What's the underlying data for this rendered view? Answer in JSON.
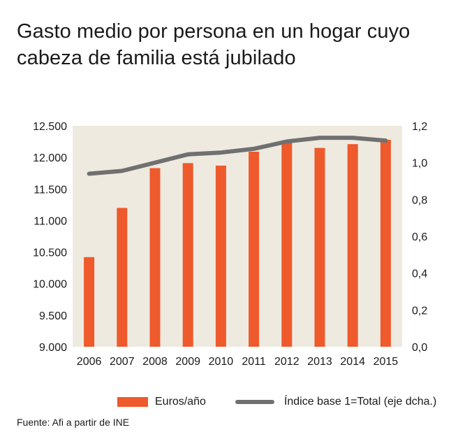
{
  "title_lines": [
    "Gasto medio por persona en un hogar cuyo",
    "cabeza de familia está jubilado"
  ],
  "source": "Fuente: Afi a partir de INE",
  "colors": {
    "bar": "#ee5a2c",
    "line": "#707070",
    "plot_bg": "#eeeae0",
    "text": "#1a1a1a"
  },
  "chart_data": {
    "type": "bar",
    "title": "Gasto medio por persona en un hogar cuyo cabeza de familia está jubilado",
    "categories": [
      "2006",
      "2007",
      "2008",
      "2009",
      "2010",
      "2011",
      "2012",
      "2013",
      "2014",
      "2015"
    ],
    "series": [
      {
        "name": "Euros/año",
        "type": "bar",
        "axis": "left",
        "values": [
          10420,
          11200,
          11830,
          11910,
          11870,
          12090,
          12260,
          12150,
          12210,
          12280
        ]
      },
      {
        "name": "Índice base 1=Total (eje dcha.)",
        "type": "line",
        "axis": "right",
        "values": [
          0.94,
          0.955,
          1.0,
          1.045,
          1.055,
          1.075,
          1.115,
          1.135,
          1.135,
          1.12
        ]
      }
    ],
    "y_left": {
      "min": 9000,
      "max": 12500,
      "ticks": [
        9000,
        9500,
        10000,
        10500,
        11000,
        11500,
        12000,
        12500
      ],
      "tick_labels": [
        "9.000",
        "9.500",
        "10.000",
        "10.500",
        "11.000",
        "11.500",
        "12.000",
        "12.500"
      ]
    },
    "y_right": {
      "min": 0,
      "max": 1.2,
      "ticks": [
        0,
        0.2,
        0.4,
        0.6,
        0.8,
        1.0,
        1.2
      ],
      "tick_labels": [
        "0,0",
        "0,2",
        "0,4",
        "0,6",
        "0,8",
        "1,0",
        "1,2"
      ]
    },
    "grid": false,
    "legend_position": "bottom"
  }
}
